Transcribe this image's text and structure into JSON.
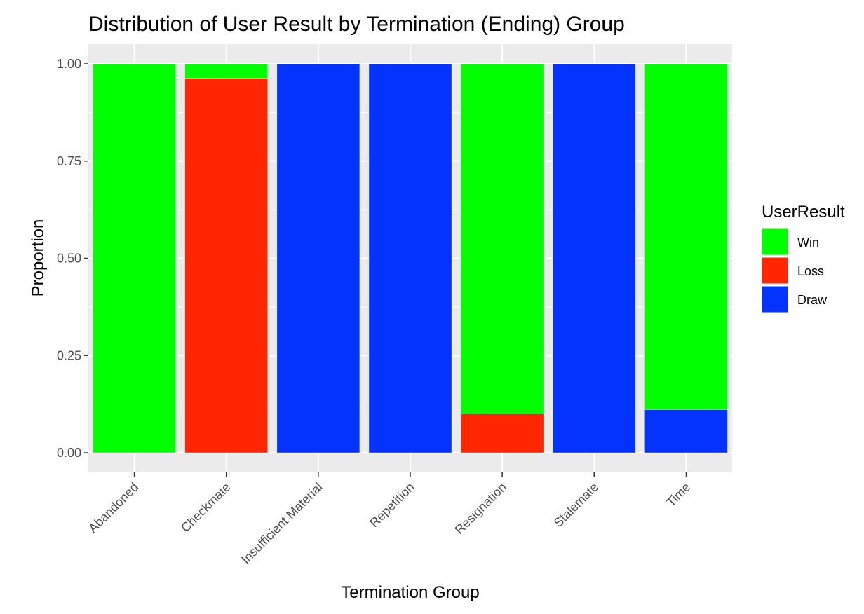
{
  "chart_data": {
    "type": "bar",
    "stacked": true,
    "title": "Distribution of User Result by Termination (Ending) Group",
    "xlabel": "Termination Group",
    "ylabel": "Proportion",
    "ylim": [
      0,
      1
    ],
    "yticks": [
      "0.00",
      "0.25",
      "0.50",
      "0.75",
      "1.00"
    ],
    "ytick_values": [
      0,
      0.25,
      0.5,
      0.75,
      1.0
    ],
    "categories": [
      "Abandoned",
      "Checkmate",
      "Insufficient Material",
      "Repetition",
      "Resignation",
      "Stalemate",
      "Time"
    ],
    "series": [
      {
        "name": "Win",
        "color": "#00ff00",
        "values": [
          1.0,
          0.037,
          0.0,
          0.0,
          0.9,
          0.0,
          0.889
        ]
      },
      {
        "name": "Loss",
        "color": "#ff2600",
        "values": [
          0.0,
          0.963,
          0.0,
          0.0,
          0.1,
          0.0,
          0.0
        ]
      },
      {
        "name": "Draw",
        "color": "#0433ff",
        "values": [
          0.0,
          0.0,
          1.0,
          1.0,
          0.0,
          1.0,
          0.111
        ]
      }
    ],
    "stack_order_bottom_to_top": [
      "Draw",
      "Loss",
      "Win"
    ],
    "legend": {
      "title": "UserResult",
      "position": "right"
    },
    "grid": true,
    "panel_background": "#ebebeb"
  }
}
